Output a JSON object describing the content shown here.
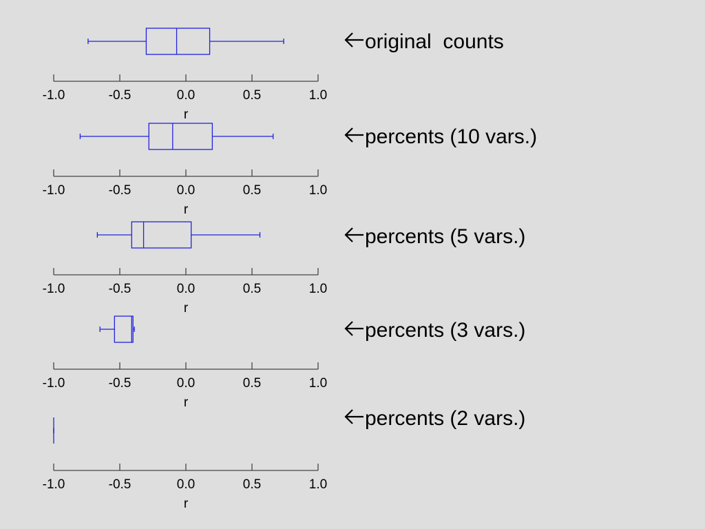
{
  "chart_data": [
    {
      "type": "boxplot",
      "xlabel": "r",
      "xlim": [
        -1.0,
        1.0
      ],
      "ticks": [
        "-1.0",
        "-0.5",
        "0.0",
        "0.5",
        "1.0"
      ],
      "tick_values": [
        -1.0,
        -0.5,
        0.0,
        0.5,
        1.0
      ],
      "annotation": "original  counts",
      "stats": {
        "min": -0.74,
        "q1": -0.3,
        "median": -0.07,
        "q3": 0.18,
        "max": 0.74
      }
    },
    {
      "type": "boxplot",
      "xlabel": "r",
      "xlim": [
        -1.0,
        1.0
      ],
      "ticks": [
        "-1.0",
        "-0.5",
        "0.0",
        "0.5",
        "1.0"
      ],
      "tick_values": [
        -1.0,
        -0.5,
        0.0,
        0.5,
        1.0
      ],
      "annotation": "percents (10 vars.)",
      "stats": {
        "min": -0.8,
        "q1": -0.28,
        "median": -0.1,
        "q3": 0.2,
        "max": 0.66
      }
    },
    {
      "type": "boxplot",
      "xlabel": "r",
      "xlim": [
        -1.0,
        1.0
      ],
      "ticks": [
        "-1.0",
        "-0.5",
        "0.0",
        "0.5",
        "1.0"
      ],
      "tick_values": [
        -1.0,
        -0.5,
        0.0,
        0.5,
        1.0
      ],
      "annotation": "percents (5 vars.)",
      "stats": {
        "min": -0.67,
        "q1": -0.41,
        "median": -0.32,
        "q3": 0.04,
        "max": 0.56
      }
    },
    {
      "type": "boxplot",
      "xlabel": "r",
      "xlim": [
        -1.0,
        1.0
      ],
      "ticks": [
        "-1.0",
        "-0.5",
        "0.0",
        "0.5",
        "1.0"
      ],
      "tick_values": [
        -1.0,
        -0.5,
        0.0,
        0.5,
        1.0
      ],
      "annotation": "percents (3 vars.)",
      "stats": {
        "min": -0.65,
        "q1": -0.54,
        "median": -0.41,
        "q3": -0.4,
        "max": -0.39
      }
    },
    {
      "type": "boxplot",
      "xlabel": "r",
      "xlim": [
        -1.0,
        1.0
      ],
      "ticks": [
        "-1.0",
        "-0.5",
        "0.0",
        "0.5",
        "1.0"
      ],
      "tick_values": [
        -1.0,
        -0.5,
        0.0,
        0.5,
        1.0
      ],
      "annotation": "percents (2 vars.)",
      "stats": {
        "min": -1.0,
        "q1": -1.0,
        "median": -1.0,
        "q3": -1.0,
        "max": -1.0
      }
    }
  ],
  "colors": {
    "background": "#dedede",
    "box": "#2222dd",
    "axis": "#444444",
    "text": "#000000"
  }
}
